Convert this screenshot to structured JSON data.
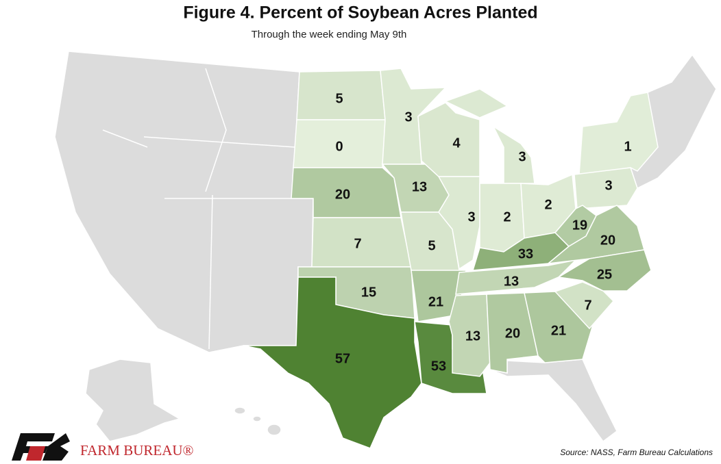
{
  "chart_data": {
    "type": "choropleth",
    "title": "Figure 4. Percent of Soybean Acres Planted",
    "subtitle": "Through the week ending May 9th",
    "source": "Source: NASS, Farm Bureau Calculations",
    "logo_text": "FARM BUREAU®",
    "color_low": "#e4efdb",
    "color_high": "#4f8232",
    "no_data_color": "#dcdcdc",
    "values": [
      5,
      0,
      20,
      7,
      15,
      57,
      3,
      13,
      5,
      21,
      53,
      4,
      3,
      3,
      2,
      2,
      33,
      13,
      13,
      20,
      21,
      1,
      3,
      19,
      20,
      25,
      7
    ]
  }
}
